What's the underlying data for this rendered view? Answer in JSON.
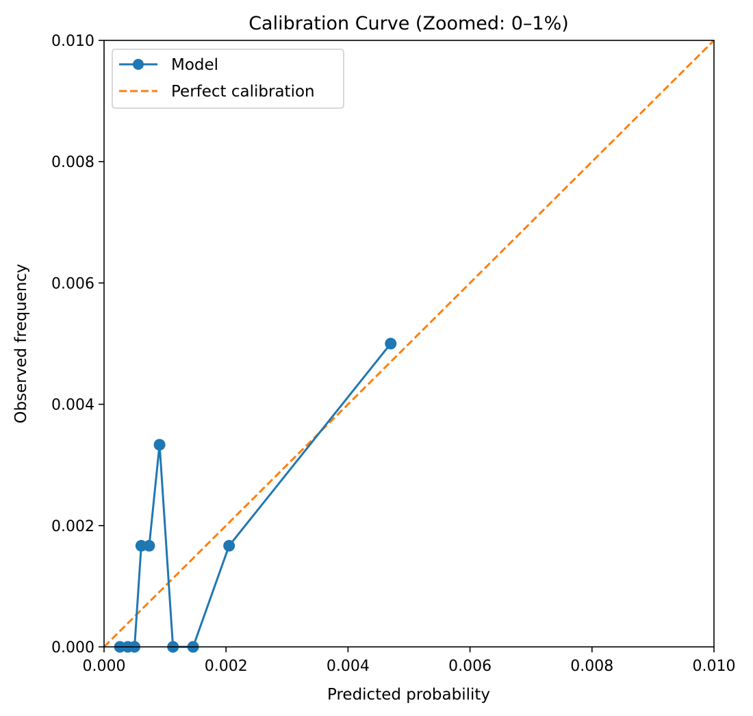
{
  "chart_data": {
    "type": "line",
    "title": "Calibration Curve (Zoomed: 0–1%)",
    "xlabel": "Predicted probability",
    "ylabel": "Observed frequency",
    "xlim": [
      0,
      0.01
    ],
    "ylim": [
      0,
      0.01
    ],
    "xticks": [
      "0.000",
      "0.002",
      "0.004",
      "0.006",
      "0.008",
      "0.010"
    ],
    "yticks": [
      "0.000",
      "0.002",
      "0.004",
      "0.006",
      "0.008",
      "0.010"
    ],
    "grid": false,
    "legend_position": "top-left",
    "series": [
      {
        "name": "Model",
        "color": "#1f77b4",
        "style": "solid",
        "marker": "circle",
        "x": [
          0.00026,
          0.00039,
          0.0005,
          0.00061,
          0.00074,
          0.00091,
          0.00113,
          0.00146,
          0.00205,
          0.0047
        ],
        "y": [
          0.0,
          0.0,
          0.0,
          0.001667,
          0.001667,
          0.003333,
          0.0,
          0.0,
          0.001667,
          0.005
        ]
      },
      {
        "name": "Perfect calibration",
        "color": "#ff7f0e",
        "style": "dashed",
        "marker": "none",
        "x": [
          0.0,
          0.01
        ],
        "y": [
          0.0,
          0.01
        ]
      }
    ]
  }
}
